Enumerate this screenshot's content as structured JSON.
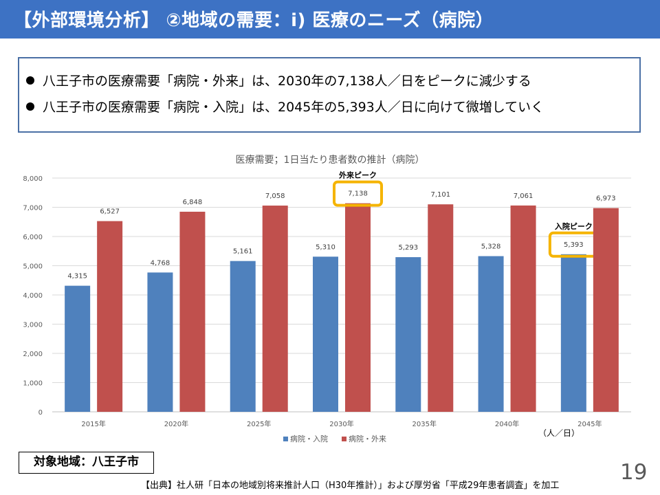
{
  "header": {
    "title": "【外部環境分析】 ②地域の需要：i) 医療のニーズ（病院）"
  },
  "bullets": [
    "八王子市の医療需要「病院・外来」は、2030年の7,138人／日をピークに減少する",
    "八王子市の医療需要「病院・入院」は、2045年の5,393人／日に向けて微増していく"
  ],
  "chart_data": {
    "type": "bar",
    "title": "医療需要；1日当たり患者数の推計（病院）",
    "categories": [
      "2015年",
      "2020年",
      "2025年",
      "2030年",
      "2035年",
      "2040年",
      "2045年"
    ],
    "series": [
      {
        "name": "病院・入院",
        "color": "#4f81bd",
        "values": [
          4315,
          4768,
          5161,
          5310,
          5293,
          5328,
          5393
        ],
        "labels": [
          "4,315",
          "4,768",
          "5,161",
          "5,310",
          "5,293",
          "5,328",
          "5,393"
        ]
      },
      {
        "name": "病院・外来",
        "color": "#c0504d",
        "values": [
          6527,
          6848,
          7058,
          7138,
          7101,
          7061,
          6973
        ],
        "labels": [
          "6,527",
          "6,848",
          "7,058",
          "7,138",
          "7,101",
          "7,061",
          "6,973"
        ]
      }
    ],
    "ylim": [
      0,
      8000
    ],
    "yticks": [
      "0",
      "1,000",
      "2,000",
      "3,000",
      "4,000",
      "5,000",
      "6,000",
      "7,000",
      "8,000"
    ],
    "grid": true,
    "legend": "bottom",
    "annotations": [
      {
        "text": "外来ピーク",
        "series": 1,
        "category": 3
      },
      {
        "text": "入院ピーク",
        "series": 0,
        "category": 6
      }
    ],
    "highlight_color": "#f5b400",
    "unit": "（人／日）"
  },
  "footer": {
    "region": "対象地域：八王子市",
    "source": "【出典】社人研「日本の地域別将来推計人口（H30年推計）」および厚労省「平成29年患者調査」を加工",
    "page_number": "19"
  }
}
